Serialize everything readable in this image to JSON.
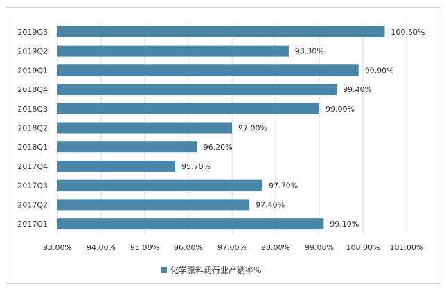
{
  "chart_data": {
    "type": "bar",
    "orientation": "horizontal",
    "categories": [
      "2017Q1",
      "2017Q2",
      "2017Q3",
      "2017Q4",
      "2018Q1",
      "2018Q2",
      "2018Q3",
      "2018Q4",
      "2019Q1",
      "2019Q2",
      "2019Q3"
    ],
    "series": [
      {
        "name": "化学原料药行业产销率%",
        "color": "#4a86a8",
        "values": [
          99.1,
          97.4,
          97.7,
          95.7,
          96.2,
          97.0,
          99.0,
          99.4,
          99.9,
          98.3,
          100.5
        ],
        "value_labels": [
          "99.10%",
          "97.40%",
          "97.70%",
          "95.70%",
          "96.20%",
          "97.00%",
          "99.00%",
          "99.40%",
          "99.90%",
          "98.30%",
          "100.50%"
        ]
      }
    ],
    "xlim": [
      93,
      101
    ],
    "xticks": [
      93,
      94,
      95,
      96,
      97,
      98,
      99,
      100,
      101
    ],
    "xtick_labels": [
      "93.00%",
      "94.00%",
      "95.00%",
      "96.00%",
      "97.00%",
      "98.00%",
      "99.00%",
      "100.00%",
      "101.00%"
    ],
    "grid": true,
    "legend_position": "bottom"
  }
}
